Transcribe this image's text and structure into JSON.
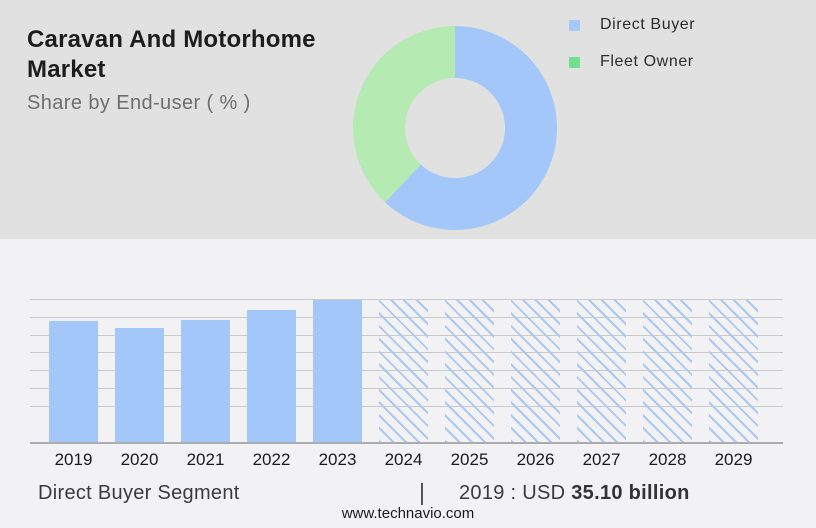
{
  "header": {
    "title": "Caravan And Motorhome Market",
    "subtitle": "Share by End-user ( % )"
  },
  "colors": {
    "top_bg": "#e1e1e2",
    "bottom_bg": "#f2f2f4",
    "bar_blue": "#a4c7f9",
    "donut_blue": "#a4c7f9",
    "donut_green": "#b6eab3",
    "legend_blue": "#a6c8fa",
    "legend_green": "#70df90",
    "hatch_blue": "#abc8f0",
    "gridline": "#cacaca",
    "axis": "#abacb0"
  },
  "legend": {
    "items": [
      {
        "label": "Direct Buyer",
        "color": "#a6c8fa"
      },
      {
        "label": "Fleet Owner",
        "color": "#70df90"
      }
    ]
  },
  "chart_data": [
    {
      "type": "pie",
      "subtype": "donut",
      "title": "Share by End-user ( % )",
      "labels": [
        "Direct Buyer",
        "Fleet Owner"
      ],
      "values_pct_estimated": [
        62,
        38
      ],
      "colors": [
        "#a4c7f9",
        "#b6eab3"
      ],
      "legend_position": "right",
      "start_angle_deg": 0,
      "direction": "clockwise"
    },
    {
      "type": "bar",
      "categories": [
        "2019",
        "2020",
        "2021",
        "2022",
        "2023",
        "2024",
        "2025",
        "2026",
        "2027",
        "2028",
        "2029"
      ],
      "values_relative_estimated": [
        85,
        80,
        86,
        93,
        100,
        100,
        100,
        100,
        100,
        100,
        100
      ],
      "ylim": [
        0,
        100
      ],
      "y_axis_labels_shown": false,
      "grid": true,
      "gridline_count": 9,
      "forecast_from_category": "2024",
      "forecast_style": "diagonal-hatch"
    }
  ],
  "footer": {
    "segment_label": "Direct Buyer Segment",
    "separator": "|",
    "value_prefix": "2019 : USD ",
    "value_bold": "35.10 billion",
    "website": "www.technavio.com"
  }
}
